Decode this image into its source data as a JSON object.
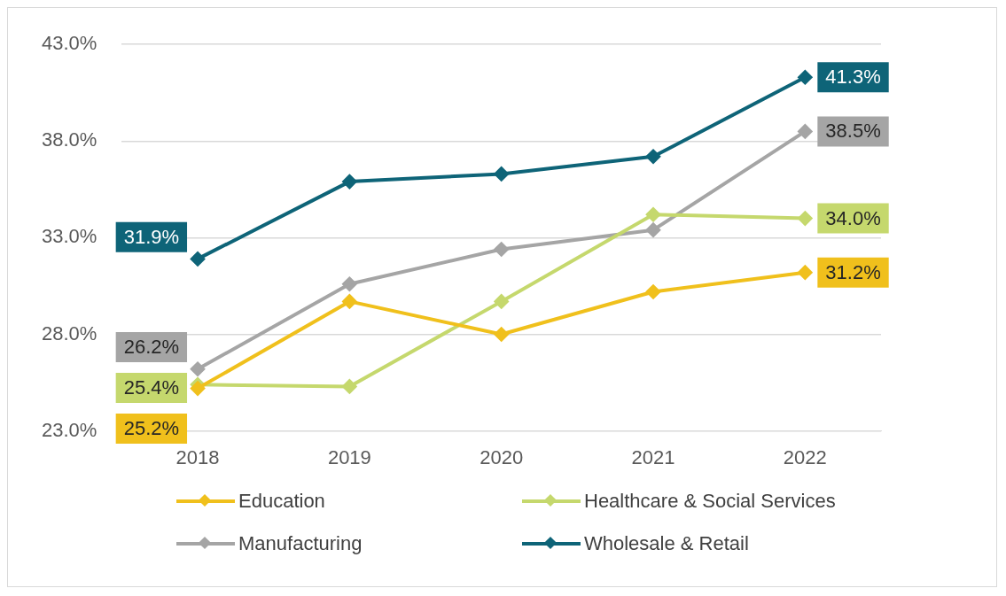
{
  "chart_data": {
    "type": "line",
    "categories": [
      "2018",
      "2019",
      "2020",
      "2021",
      "2022"
    ],
    "series": [
      {
        "name": "Education",
        "color": "#f0c01c",
        "values": [
          25.2,
          29.7,
          28.0,
          30.2,
          31.2
        ],
        "value_labels": [
          "25.2%",
          null,
          null,
          null,
          "31.2%"
        ]
      },
      {
        "name": "Healthcare & Social Services",
        "color": "#c5d86d",
        "values": [
          25.4,
          25.3,
          29.7,
          34.2,
          34.0
        ],
        "value_labels": [
          "25.4%",
          null,
          null,
          null,
          "34.0%"
        ]
      },
      {
        "name": "Manufacturing",
        "color": "#a5a5a5",
        "values": [
          26.2,
          30.6,
          32.4,
          33.4,
          38.5
        ],
        "value_labels": [
          "26.2%",
          null,
          null,
          null,
          "38.5%"
        ]
      },
      {
        "name": "Wholesale & Retail",
        "color": "#0e6478",
        "values": [
          31.9,
          35.9,
          36.3,
          37.2,
          41.3
        ],
        "value_labels": [
          "31.9%",
          null,
          null,
          null,
          "41.3%"
        ]
      }
    ],
    "ylim": [
      23,
      43
    ],
    "yticks": [
      {
        "value": 23,
        "label": "23.0%"
      },
      {
        "value": 28,
        "label": "28.0%"
      },
      {
        "value": 33,
        "label": "33.0%"
      },
      {
        "value": 38,
        "label": "38.0%"
      },
      {
        "value": 43,
        "label": "43.0%"
      }
    ],
    "grid": "y",
    "legend": "bottom",
    "marker": "diamond",
    "line_style": "solid"
  }
}
